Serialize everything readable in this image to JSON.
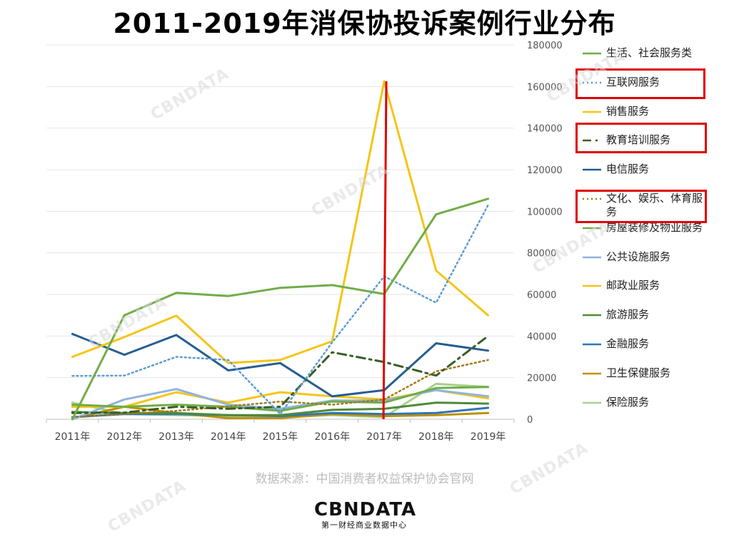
{
  "title": "2011-2019年消保协投诉案例行业分布",
  "source": "数据来源：中国消费者权益保护协会官网",
  "logo": {
    "name": "CBNDATA",
    "tagline": "第一财经商业数据中心"
  },
  "watermark": "CBNDATA",
  "chart_data": {
    "type": "line",
    "title": "2011-2019年消保协投诉案例行业分布",
    "categories": [
      "2011年",
      "2012年",
      "2013年",
      "2014年",
      "2015年",
      "2016年",
      "2017年",
      "2018年",
      "2019年"
    ],
    "y_axis": {
      "position": "right",
      "min": 0,
      "max": 180000,
      "ticks": [
        0,
        20000,
        40000,
        60000,
        80000,
        100000,
        120000,
        140000,
        160000,
        180000
      ]
    },
    "grid": "horizontal",
    "legend_position": "right",
    "series": [
      {
        "name": "生活、社会服务类",
        "color": "#70ad47",
        "dash": "solid",
        "width": 3,
        "values": [
          0,
          50000,
          60800,
          59200,
          63200,
          64500,
          60200,
          98500,
          106000
        ]
      },
      {
        "name": "互联网服务",
        "color": "#5b9bd5",
        "dash": "dot",
        "width": 2.5,
        "values": [
          20800,
          21000,
          30000,
          28500,
          2500,
          37000,
          68700,
          56000,
          103000
        ],
        "highlighted": true
      },
      {
        "name": "销售服务",
        "color": "#f5c518",
        "dash": "solid",
        "width": 3,
        "values": [
          30000,
          39500,
          49800,
          27000,
          28500,
          37500,
          162500,
          71500,
          50000
        ]
      },
      {
        "name": "教育培训服务",
        "color": "#3a5e26",
        "dash": "dashdot",
        "width": 3,
        "values": [
          3000,
          3200,
          6000,
          5000,
          6000,
          32200,
          27500,
          21000,
          40000
        ],
        "highlighted": true
      },
      {
        "name": "电信服务",
        "color": "#255e91",
        "dash": "solid",
        "width": 3,
        "values": [
          41000,
          31000,
          40500,
          23500,
          27000,
          11000,
          14000,
          36500,
          33000
        ]
      },
      {
        "name": "文化、娱乐、体育服务",
        "color": "#9e7a17",
        "dash": "dot",
        "width": 2.5,
        "values": [
          1000,
          2500,
          4000,
          6200,
          8500,
          7000,
          9500,
          23000,
          28500
        ],
        "highlighted": true
      },
      {
        "name": "房屋装修及物业服务",
        "color": "#70ad47",
        "dash": "solid",
        "width": 3,
        "values": [
          7000,
          6000,
          7000,
          6000,
          4000,
          8500,
          8000,
          15000,
          15500
        ]
      },
      {
        "name": "公共设施服务",
        "color": "#8fb4de",
        "dash": "solid",
        "width": 3,
        "values": [
          0,
          9500,
          14500,
          7000,
          5000,
          9000,
          9000,
          14000,
          11000
        ]
      },
      {
        "name": "邮政业服务",
        "color": "#f5c518",
        "dash": "solid",
        "width": 3,
        "values": [
          6000,
          6000,
          13000,
          8000,
          13000,
          11000,
          9500,
          14000,
          10000
        ]
      },
      {
        "name": "旅游服务",
        "color": "#4e8a3a",
        "dash": "solid",
        "width": 3,
        "values": [
          3500,
          3000,
          3000,
          2000,
          2000,
          4500,
          5000,
          8000,
          7500
        ]
      },
      {
        "name": "金融服务",
        "color": "#2e75b6",
        "dash": "solid",
        "width": 3,
        "values": [
          1000,
          2500,
          2500,
          2000,
          1500,
          3000,
          2500,
          3000,
          5500
        ]
      },
      {
        "name": "卫生保健服务",
        "color": "#bf9000",
        "dash": "solid",
        "width": 3,
        "values": [
          500,
          6000,
          3000,
          500,
          500,
          2500,
          1500,
          2000,
          3000
        ]
      },
      {
        "name": "保险服务",
        "color": "#a9d18e",
        "dash": "solid",
        "width": 3,
        "values": [
          8000,
          2500,
          2000,
          1500,
          1000,
          2000,
          1000,
          17000,
          15500
        ]
      }
    ],
    "annotations": [
      {
        "type": "vertical-line",
        "color": "#e00000",
        "x_category": "2017年",
        "from": 0,
        "to": 162500
      }
    ]
  }
}
